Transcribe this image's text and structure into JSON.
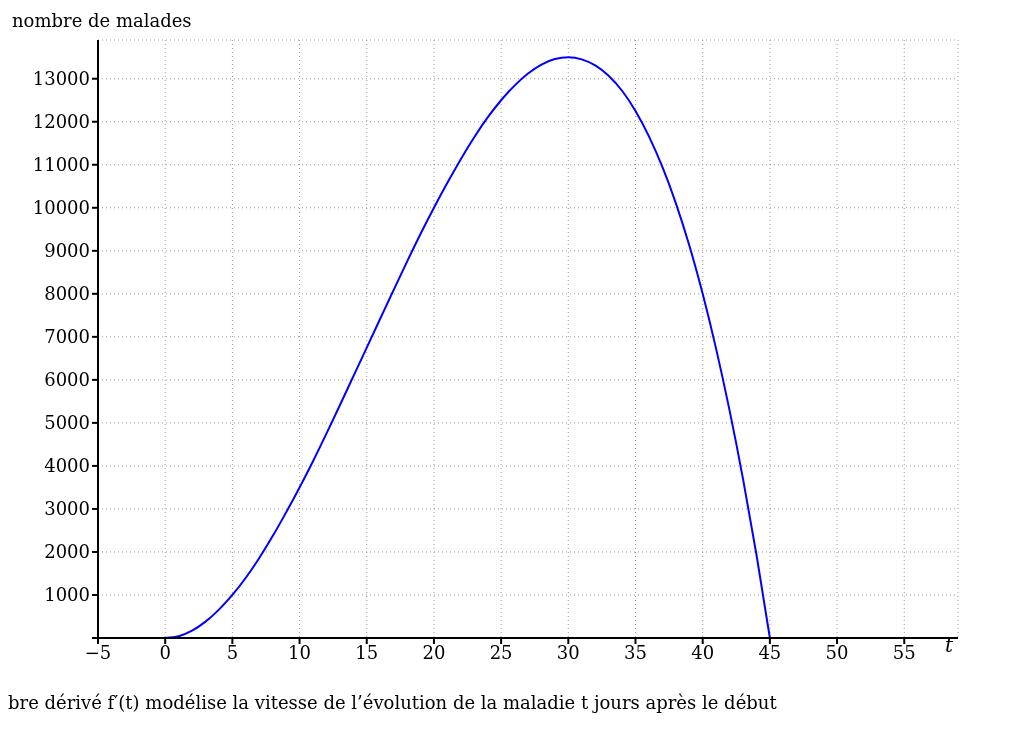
{
  "chart_data": {
    "type": "line",
    "ylabel": "nombre de malades",
    "xlabel": "t",
    "x": [
      0,
      1,
      2,
      3,
      4,
      5,
      6,
      7,
      8,
      9,
      10,
      11,
      12,
      13,
      14,
      15,
      16,
      17,
      18,
      19,
      20,
      21,
      22,
      23,
      24,
      25,
      26,
      27,
      28,
      29,
      30,
      31,
      32,
      33,
      34,
      35,
      36,
      37,
      38,
      39,
      40,
      41,
      42,
      43,
      44,
      45
    ],
    "series": [
      {
        "color": "#0000ff",
        "values": [
          0,
          40,
          170,
          380,
          660,
          1000,
          1400,
          1860,
          2370,
          2920,
          3500,
          4110,
          4750,
          5410,
          6080,
          6750,
          7420,
          8090,
          8750,
          9390,
          10000,
          10580,
          11130,
          11640,
          12100,
          12500,
          12840,
          13120,
          13330,
          13460,
          13500,
          13450,
          13310,
          13070,
          12720,
          12250,
          11660,
          10950,
          10110,
          9130,
          8000,
          6720,
          5290,
          3700,
          1940,
          0
        ]
      }
    ],
    "xlim": [
      -5,
      59
    ],
    "xticks": [
      {
        "value": -5,
        "label": "−5"
      },
      0,
      5,
      10,
      15,
      20,
      25,
      30,
      35,
      40,
      45,
      50,
      55
    ],
    "ylim": [
      0,
      13900
    ],
    "yticks": [
      {
        "value": 0,
        "label": null
      },
      1000,
      2000,
      3000,
      4000,
      5000,
      6000,
      7000,
      8000,
      9000,
      10000,
      11000,
      12000,
      13000
    ],
    "grid": true,
    "marker": "none",
    "line_style": "solid",
    "legend": false,
    "annotations": [
      "bre dérivé f′(t) modélise la vitesse de l’évolution de la maladie t jours après le début"
    ]
  }
}
